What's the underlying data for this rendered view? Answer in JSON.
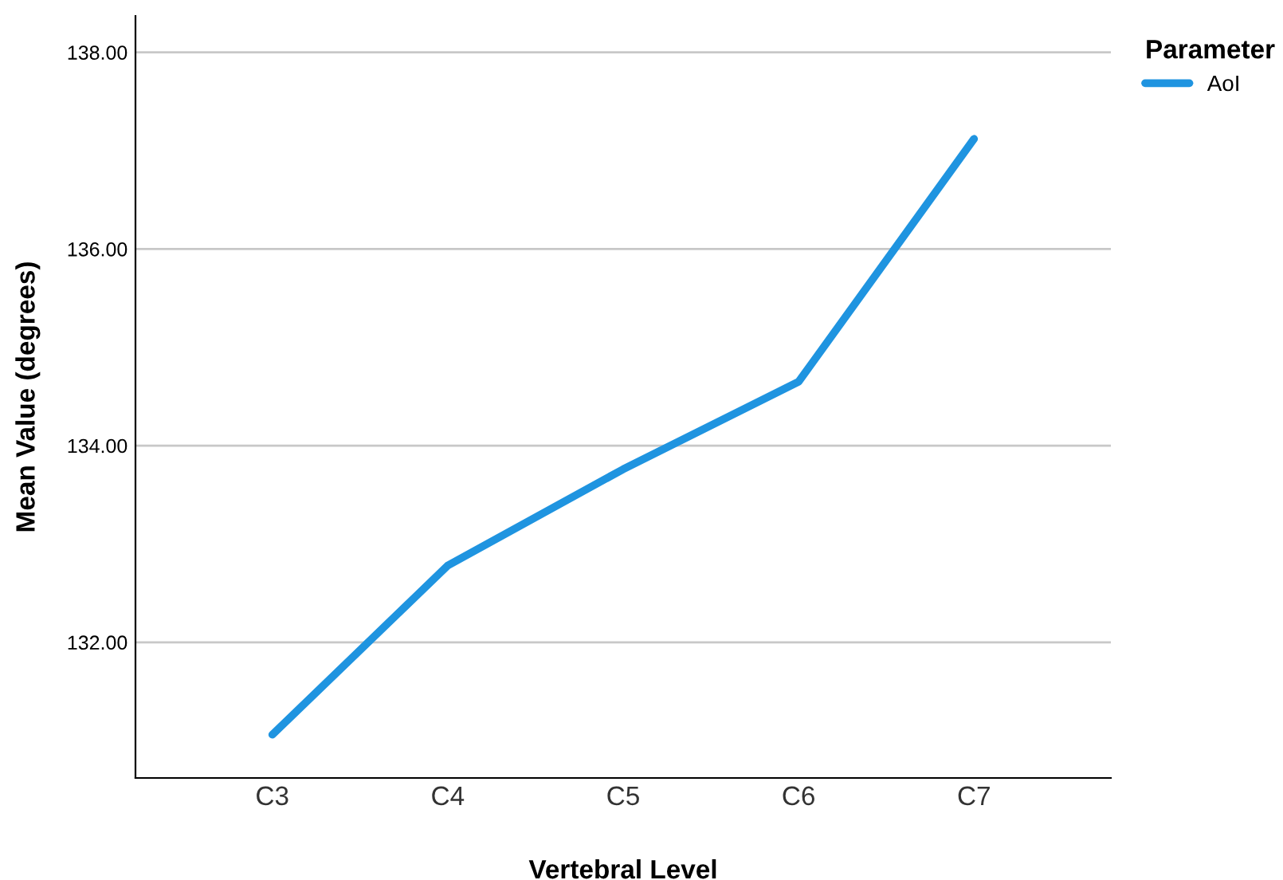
{
  "chart_data": {
    "type": "line",
    "xlabel": "Vertebral Level",
    "ylabel": "Mean Value (degrees)",
    "legend_title": "Parameter",
    "categories": [
      "C3",
      "C4",
      "C5",
      "C6",
      "C7"
    ],
    "series": [
      {
        "name": "AoI",
        "color": "#1f94e0",
        "values": [
          131.06,
          132.78,
          133.76,
          134.65,
          137.12
        ]
      }
    ],
    "ylim": [
      130.62,
      138.37
    ],
    "yticks": [
      {
        "value": 132,
        "label": "132.00"
      },
      {
        "value": 134,
        "label": "134.00"
      },
      {
        "value": 136,
        "label": "136.00"
      },
      {
        "value": 138,
        "label": "138.00"
      }
    ],
    "grid": "y",
    "legend": "top right",
    "marker": "none",
    "line_style": "solid"
  }
}
